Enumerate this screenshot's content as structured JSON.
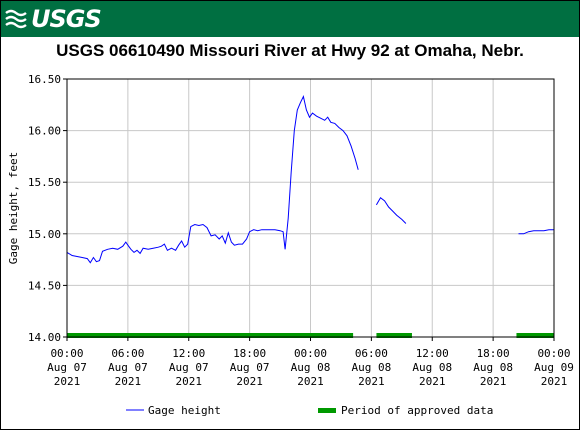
{
  "logo": {
    "text": "USGS"
  },
  "colors": {
    "banner": "#006f41",
    "series": "#0000ff",
    "approved": "#009900"
  },
  "chart_data": {
    "type": "line",
    "title": "USGS 06610490 Missouri River at Hwy 92 at Omaha, Nebr.",
    "ylabel": "Gage height, feet",
    "ylim": [
      14.0,
      16.5
    ],
    "yticks": [
      "16.50",
      "16.00",
      "15.50",
      "15.00",
      "14.50",
      "14.00"
    ],
    "xlim_hours": [
      0,
      48
    ],
    "xticks": [
      {
        "hour": 0,
        "line1": "00:00",
        "line2": "Aug 07",
        "line3": "2021"
      },
      {
        "hour": 6,
        "line1": "06:00",
        "line2": "Aug 07",
        "line3": "2021"
      },
      {
        "hour": 12,
        "line1": "12:00",
        "line2": "Aug 07",
        "line3": "2021"
      },
      {
        "hour": 18,
        "line1": "18:00",
        "line2": "Aug 07",
        "line3": "2021"
      },
      {
        "hour": 24,
        "line1": "00:00",
        "line2": "Aug 08",
        "line3": "2021"
      },
      {
        "hour": 30,
        "line1": "06:00",
        "line2": "Aug 08",
        "line3": "2021"
      },
      {
        "hour": 36,
        "line1": "12:00",
        "line2": "Aug 08",
        "line3": "2021"
      },
      {
        "hour": 42,
        "line1": "18:00",
        "line2": "Aug 08",
        "line3": "2021"
      },
      {
        "hour": 48,
        "line1": "00:00",
        "line2": "Aug 09",
        "line3": "2021"
      }
    ],
    "grid": true,
    "series": [
      {
        "name": "Gage height",
        "segments": [
          [
            [
              0,
              14.82
            ],
            [
              0.5,
              14.79
            ],
            [
              1,
              14.78
            ],
            [
              1.5,
              14.77
            ],
            [
              2,
              14.76
            ],
            [
              2.3,
              14.72
            ],
            [
              2.6,
              14.77
            ],
            [
              2.9,
              14.73
            ],
            [
              3.2,
              14.74
            ],
            [
              3.5,
              14.83
            ],
            [
              4,
              14.85
            ],
            [
              4.5,
              14.86
            ],
            [
              5,
              14.85
            ],
            [
              5.5,
              14.88
            ],
            [
              5.8,
              14.92
            ],
            [
              6,
              14.89
            ],
            [
              6.3,
              14.85
            ],
            [
              6.6,
              14.82
            ],
            [
              6.9,
              14.84
            ],
            [
              7.2,
              14.81
            ],
            [
              7.5,
              14.86
            ],
            [
              8,
              14.85
            ],
            [
              8.5,
              14.86
            ],
            [
              9,
              14.87
            ],
            [
              9.3,
              14.88
            ],
            [
              9.6,
              14.9
            ],
            [
              9.9,
              14.84
            ],
            [
              10.3,
              14.86
            ],
            [
              10.7,
              14.84
            ],
            [
              11,
              14.89
            ],
            [
              11.3,
              14.93
            ],
            [
              11.6,
              14.87
            ],
            [
              11.9,
              14.9
            ],
            [
              12.2,
              15.07
            ],
            [
              12.6,
              15.09
            ],
            [
              13,
              15.08
            ],
            [
              13.4,
              15.09
            ],
            [
              13.8,
              15.06
            ],
            [
              14.2,
              14.98
            ],
            [
              14.6,
              14.99
            ],
            [
              15,
              14.95
            ],
            [
              15.3,
              14.98
            ],
            [
              15.6,
              14.91
            ],
            [
              15.9,
              15.01
            ],
            [
              16.2,
              14.92
            ],
            [
              16.5,
              14.89
            ],
            [
              16.9,
              14.9
            ],
            [
              17.3,
              14.9
            ],
            [
              17.7,
              14.95
            ],
            [
              18,
              15.02
            ],
            [
              18.4,
              15.04
            ],
            [
              18.8,
              15.03
            ],
            [
              19.2,
              15.04
            ],
            [
              19.6,
              15.04
            ],
            [
              20,
              15.04
            ],
            [
              20.5,
              15.04
            ],
            [
              21,
              15.03
            ],
            [
              21.3,
              15.02
            ],
            [
              21.5,
              14.85
            ],
            [
              21.8,
              15.15
            ],
            [
              22.1,
              15.6
            ],
            [
              22.4,
              16.0
            ],
            [
              22.7,
              16.2
            ],
            [
              23,
              16.27
            ],
            [
              23.3,
              16.33
            ],
            [
              23.6,
              16.2
            ],
            [
              23.9,
              16.13
            ],
            [
              24.2,
              16.17
            ],
            [
              24.6,
              16.14
            ],
            [
              25,
              16.12
            ],
            [
              25.4,
              16.1
            ],
            [
              25.7,
              16.13
            ],
            [
              26,
              16.08
            ],
            [
              26.4,
              16.07
            ],
            [
              26.8,
              16.03
            ],
            [
              27.2,
              16.0
            ],
            [
              27.6,
              15.95
            ],
            [
              28,
              15.85
            ],
            [
              28.4,
              15.73
            ],
            [
              28.7,
              15.62
            ]
          ],
          [
            [
              30.5,
              15.28
            ],
            [
              30.9,
              15.35
            ],
            [
              31.3,
              15.32
            ],
            [
              31.7,
              15.26
            ],
            [
              32.1,
              15.22
            ],
            [
              32.5,
              15.18
            ],
            [
              33,
              15.14
            ],
            [
              33.4,
              15.1
            ]
          ],
          [
            [
              44.5,
              15.0
            ],
            [
              45,
              15.0
            ],
            [
              45.5,
              15.02
            ],
            [
              46,
              15.03
            ],
            [
              46.5,
              15.03
            ],
            [
              47,
              15.03
            ],
            [
              47.5,
              15.04
            ],
            [
              48,
              15.04
            ]
          ]
        ]
      }
    ],
    "approved_periods": [
      [
        0,
        28.2
      ],
      [
        30.5,
        34.0
      ],
      [
        44.3,
        48
      ]
    ],
    "legend": {
      "placement": "bottom",
      "items": [
        {
          "label": "Gage height",
          "kind": "line"
        },
        {
          "label": "Period of approved data",
          "kind": "bar"
        }
      ]
    }
  }
}
